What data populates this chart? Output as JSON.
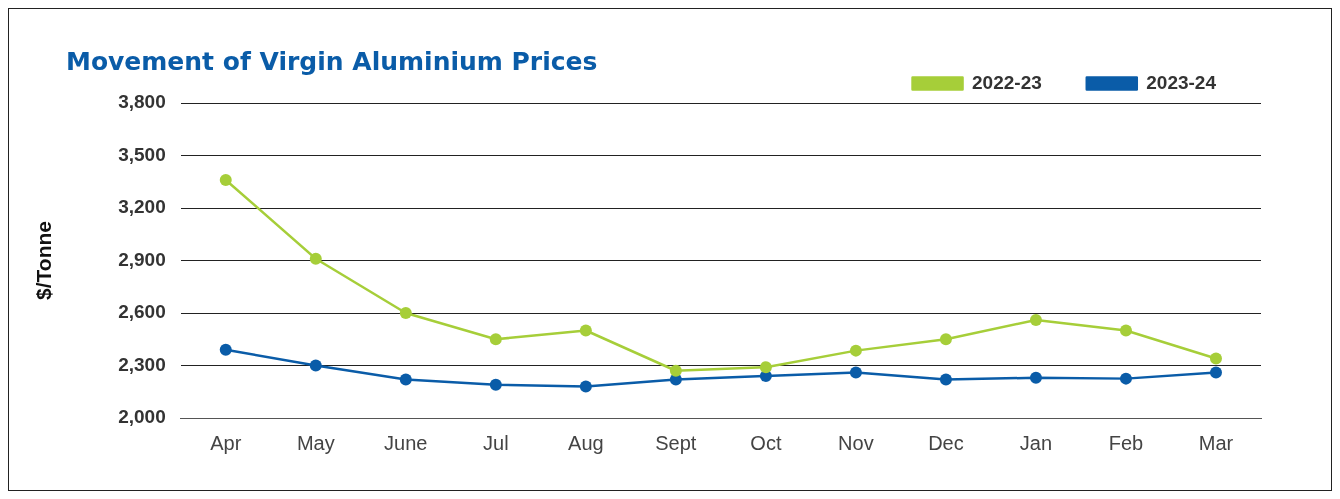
{
  "chart_data": {
    "type": "line",
    "title": "Movement of Virgin Aluminium Prices",
    "ylabel": "$/Tonne",
    "categories": [
      "Apr",
      "May",
      "June",
      "Jul",
      "Aug",
      "Sept",
      "Oct",
      "Nov",
      "Dec",
      "Jan",
      "Feb",
      "Mar"
    ],
    "series": [
      {
        "name": "2022-23",
        "color": "#a6ce39",
        "values": [
          3360,
          2910,
          2600,
          2450,
          2500,
          2270,
          2290,
          2385,
          2450,
          2560,
          2500,
          2340
        ]
      },
      {
        "name": "2023-24",
        "color": "#0a5ca8",
        "values": [
          2390,
          2300,
          2220,
          2190,
          2180,
          2220,
          2240,
          2260,
          2220,
          2230,
          2225,
          2260
        ]
      }
    ],
    "ylim": [
      2000,
      3800
    ],
    "yticks": [
      {
        "value": 2000,
        "label": "2,000"
      },
      {
        "value": 2300,
        "label": "2,300"
      },
      {
        "value": 2600,
        "label": "2,600"
      },
      {
        "value": 2900,
        "label": "2,900"
      },
      {
        "value": 3200,
        "label": "3,200"
      },
      {
        "value": 3500,
        "label": "3,500"
      },
      {
        "value": 3800,
        "label": "3,800"
      }
    ],
    "grid": "y",
    "legend": "top right",
    "marker": "circle",
    "line_style": "solid"
  }
}
